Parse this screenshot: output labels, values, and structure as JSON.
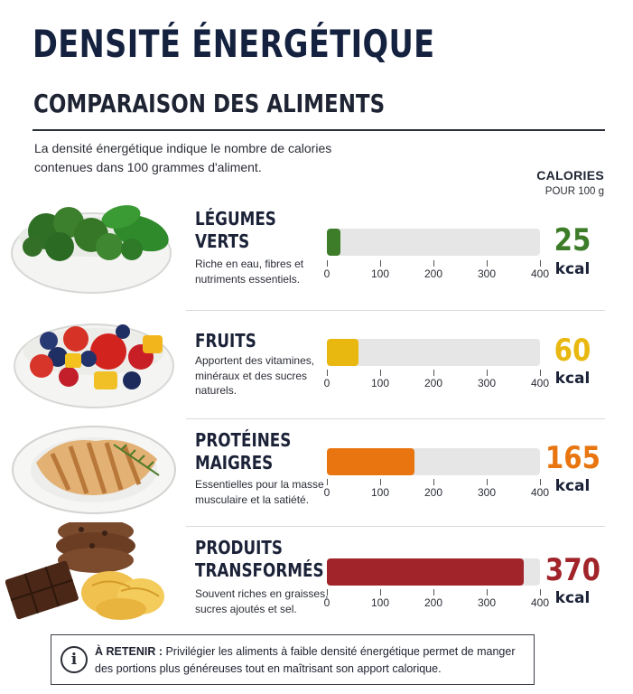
{
  "header": {
    "title": "DENSITÉ ÉNERGÉTIQUE",
    "subtitle": "COMPARAISON DES ALIMENTS",
    "intro": "La densité énergétique indique le nombre de calories contenues dans 100 grammes d'aliment.",
    "calories_label": "CALORIES",
    "per_label": "POUR 100 g"
  },
  "chart_data": {
    "type": "bar",
    "orientation": "horizontal",
    "categories": [
      "LÉGUMES VERTS",
      "FRUITS",
      "PROTÉINES MAIGRES",
      "PRODUITS TRANSFORMÉS"
    ],
    "values": [
      25,
      60,
      165,
      370
    ],
    "value_labels": [
      "25",
      "60",
      "165",
      "370"
    ],
    "unit": "kcal",
    "xlim": [
      0,
      400
    ],
    "ticks": [
      "0",
      "100",
      "200",
      "300",
      "400"
    ],
    "colors": [
      "#3d7d2a",
      "#e9b810",
      "#e87510",
      "#a0242a"
    ],
    "descriptions": [
      "Riche en eau, fibres et nutriments essentiels.",
      "Apportent des vitamines, minéraux et des sucres naturels.",
      "Essentielles pour la masse musculaire et la satiété.",
      "Souvent riches en graisses, sucres ajoutés et sel."
    ],
    "images": [
      "broccoli-spinach-bowl",
      "mixed-fruit-bowl",
      "grilled-chicken-plate",
      "cookies-chocolate-chips"
    ]
  },
  "note": {
    "icon": "info-icon",
    "bold": "À RETENIR :",
    "text": " Privilégier les aliments à faible densité énergétique permet de manger des portions plus généreuses tout en maîtrisant son apport calorique."
  }
}
